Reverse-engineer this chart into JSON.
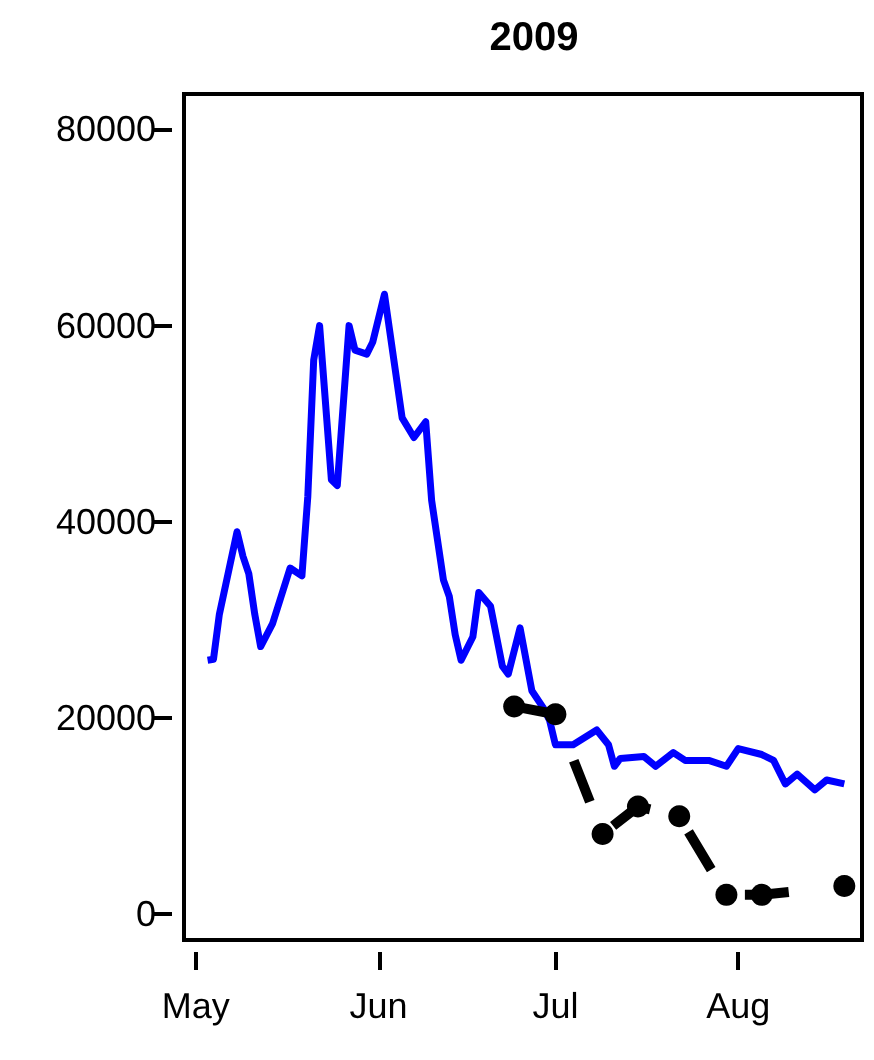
{
  "chart_data": {
    "type": "line",
    "title": "2009",
    "xlim": [
      "2009-04-29",
      "2009-08-22"
    ],
    "xticks": [
      {
        "value": "2009-05-01",
        "label": "May"
      },
      {
        "value": "2009-06-01",
        "label": "Jun"
      },
      {
        "value": "2009-07-01",
        "label": "Jul"
      },
      {
        "value": "2009-08-01",
        "label": "Aug"
      }
    ],
    "ylim": [
      -2600,
      83600
    ],
    "yticks": [
      0,
      20000,
      40000,
      60000,
      80000
    ],
    "series": [
      {
        "color": "#0000ff",
        "marker": "none",
        "line_style": "solid",
        "x": [
          "2009-05-03",
          "2009-05-04",
          "2009-05-05",
          "2009-05-08",
          "2009-05-09",
          "2009-05-10",
          "2009-05-11",
          "2009-05-12",
          "2009-05-14",
          "2009-05-17",
          "2009-05-19",
          "2009-05-20",
          "2009-05-21",
          "2009-05-22",
          "2009-05-24",
          "2009-05-25",
          "2009-05-27",
          "2009-05-28",
          "2009-05-30",
          "2009-05-31",
          "2009-06-02",
          "2009-06-05",
          "2009-06-07",
          "2009-06-09",
          "2009-06-10",
          "2009-06-12",
          "2009-06-13",
          "2009-06-14",
          "2009-06-15",
          "2009-06-17",
          "2009-06-18",
          "2009-06-20",
          "2009-06-22",
          "2009-06-23",
          "2009-06-25",
          "2009-06-27",
          "2009-06-29",
          "2009-06-30",
          "2009-07-01",
          "2009-07-04",
          "2009-07-08",
          "2009-07-10",
          "2009-07-11",
          "2009-07-12",
          "2009-07-16",
          "2009-07-18",
          "2009-07-21",
          "2009-07-23",
          "2009-07-27",
          "2009-07-30",
          "2009-08-01",
          "2009-08-05",
          "2009-08-07",
          "2009-08-09",
          "2009-08-11",
          "2009-08-14",
          "2009-08-16",
          "2009-08-19"
        ],
        "values": [
          25900,
          26000,
          30600,
          39000,
          36500,
          34700,
          30600,
          27300,
          29600,
          35300,
          34500,
          42600,
          56500,
          60000,
          44300,
          43700,
          60000,
          57500,
          57100,
          58300,
          63200,
          50600,
          48600,
          50200,
          42200,
          34100,
          32400,
          28500,
          25900,
          28300,
          32800,
          31400,
          25300,
          24500,
          29200,
          22800,
          21000,
          19800,
          17300,
          17300,
          18800,
          17300,
          15100,
          15900,
          16100,
          15100,
          16500,
          15700,
          15700,
          15100,
          16900,
          16300,
          15700,
          13300,
          14300,
          12700,
          13700,
          13300
        ]
      },
      {
        "color": "#000000",
        "marker": "circle",
        "line_style": "dashed",
        "x": [
          "2009-06-24",
          "2009-07-01",
          "2009-07-09",
          "2009-07-15",
          "2009-07-22",
          "2009-07-30",
          "2009-08-05",
          "2009-08-19"
        ],
        "values": [
          21200,
          20400,
          8200,
          11000,
          10000,
          2000,
          2000,
          2900
        ]
      }
    ]
  }
}
